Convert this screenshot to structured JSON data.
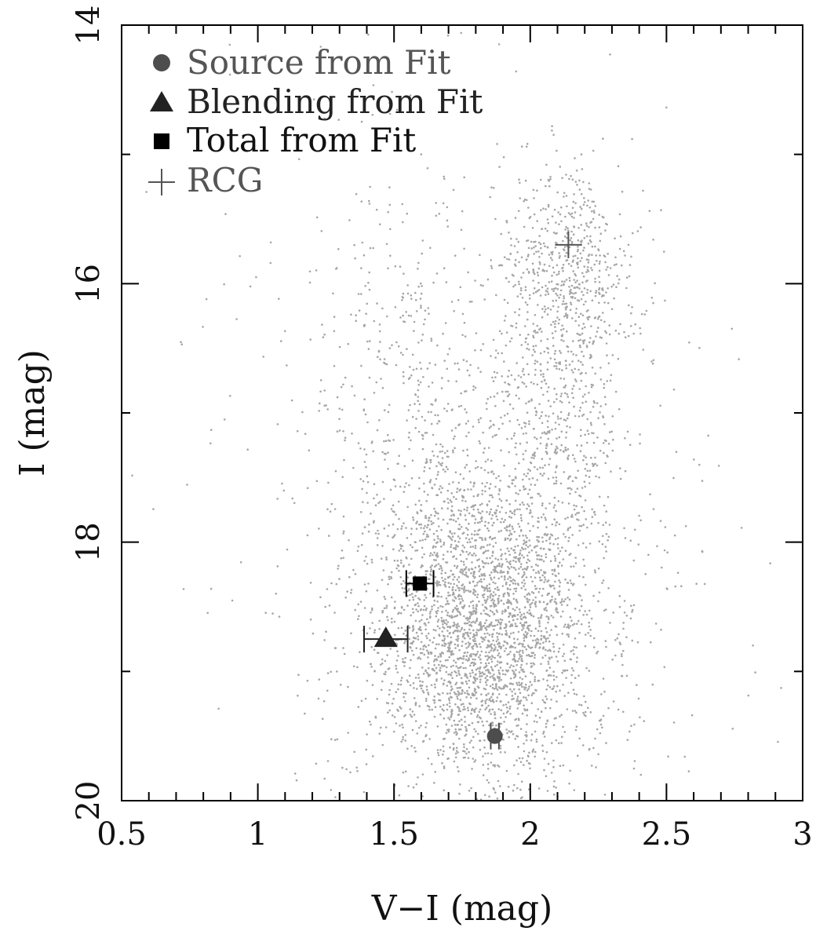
{
  "chart_data": {
    "type": "scatter",
    "title": "",
    "xlabel": "V−I (mag)",
    "ylabel": "I (mag)",
    "xlim": [
      0.5,
      3.0
    ],
    "ylim": [
      20.0,
      14.0
    ],
    "y_inverted": true,
    "x_ticks": [
      {
        "value": 0.5,
        "label": "0.5"
      },
      {
        "value": 1.0,
        "label": "1"
      },
      {
        "value": 1.5,
        "label": "1.5"
      },
      {
        "value": 2.0,
        "label": "2"
      },
      {
        "value": 2.5,
        "label": "2.5"
      },
      {
        "value": 3.0,
        "label": "3"
      }
    ],
    "y_ticks": [
      {
        "value": 14,
        "label": "14"
      },
      {
        "value": 16,
        "label": "16"
      },
      {
        "value": 18,
        "label": "18"
      },
      {
        "value": 20,
        "label": "20"
      }
    ],
    "x_minor_step": 0.1,
    "y_minor_step": 1.0,
    "legend_position": "top-left",
    "colors": {
      "field_stars": "#a6a6a6",
      "source": "#4d4d4d",
      "blending": "#222222",
      "total": "#000000",
      "rcg": "#555555",
      "axes": "#000000"
    },
    "special_points": [
      {
        "key": "source",
        "name": "Source from Fit",
        "marker": "circle",
        "x": 1.87,
        "y": 19.5,
        "xerr": 0.015,
        "color": "#4d4d4d"
      },
      {
        "key": "blending",
        "name": "Blending from Fit",
        "marker": "triangle",
        "x": 1.47,
        "y": 18.75,
        "xerr": 0.08,
        "color": "#222222"
      },
      {
        "key": "total",
        "name": "Total from Fit",
        "marker": "square",
        "x": 1.595,
        "y": 18.32,
        "xerr": 0.05,
        "color": "#000000"
      },
      {
        "key": "rcg",
        "name": "RCG",
        "marker": "plus",
        "x": 2.14,
        "y": 15.7,
        "xerr": 0,
        "color": "#555555"
      }
    ],
    "field_distribution": {
      "description_note": "",
      "components": [
        {
          "x_center": 1.82,
          "y_center": 18.7,
          "x_sigma": 0.17,
          "y_sigma": 0.55,
          "count": 1800
        },
        {
          "x_center": 1.85,
          "y_center": 18.4,
          "x_sigma": 0.28,
          "y_sigma": 0.9,
          "count": 1500
        },
        {
          "x_center": 2.1,
          "y_center": 16.8,
          "x_sigma": 0.1,
          "y_sigma": 0.75,
          "count": 500
        },
        {
          "x_center": 2.15,
          "y_center": 15.9,
          "x_sigma": 0.12,
          "y_sigma": 0.35,
          "count": 450
        },
        {
          "x_center": 1.55,
          "y_center": 16.9,
          "x_sigma": 0.18,
          "y_sigma": 0.9,
          "count": 260
        },
        {
          "x_center": 1.7,
          "y_center": 17.3,
          "x_sigma": 0.45,
          "y_sigma": 1.7,
          "count": 450
        }
      ]
    }
  }
}
